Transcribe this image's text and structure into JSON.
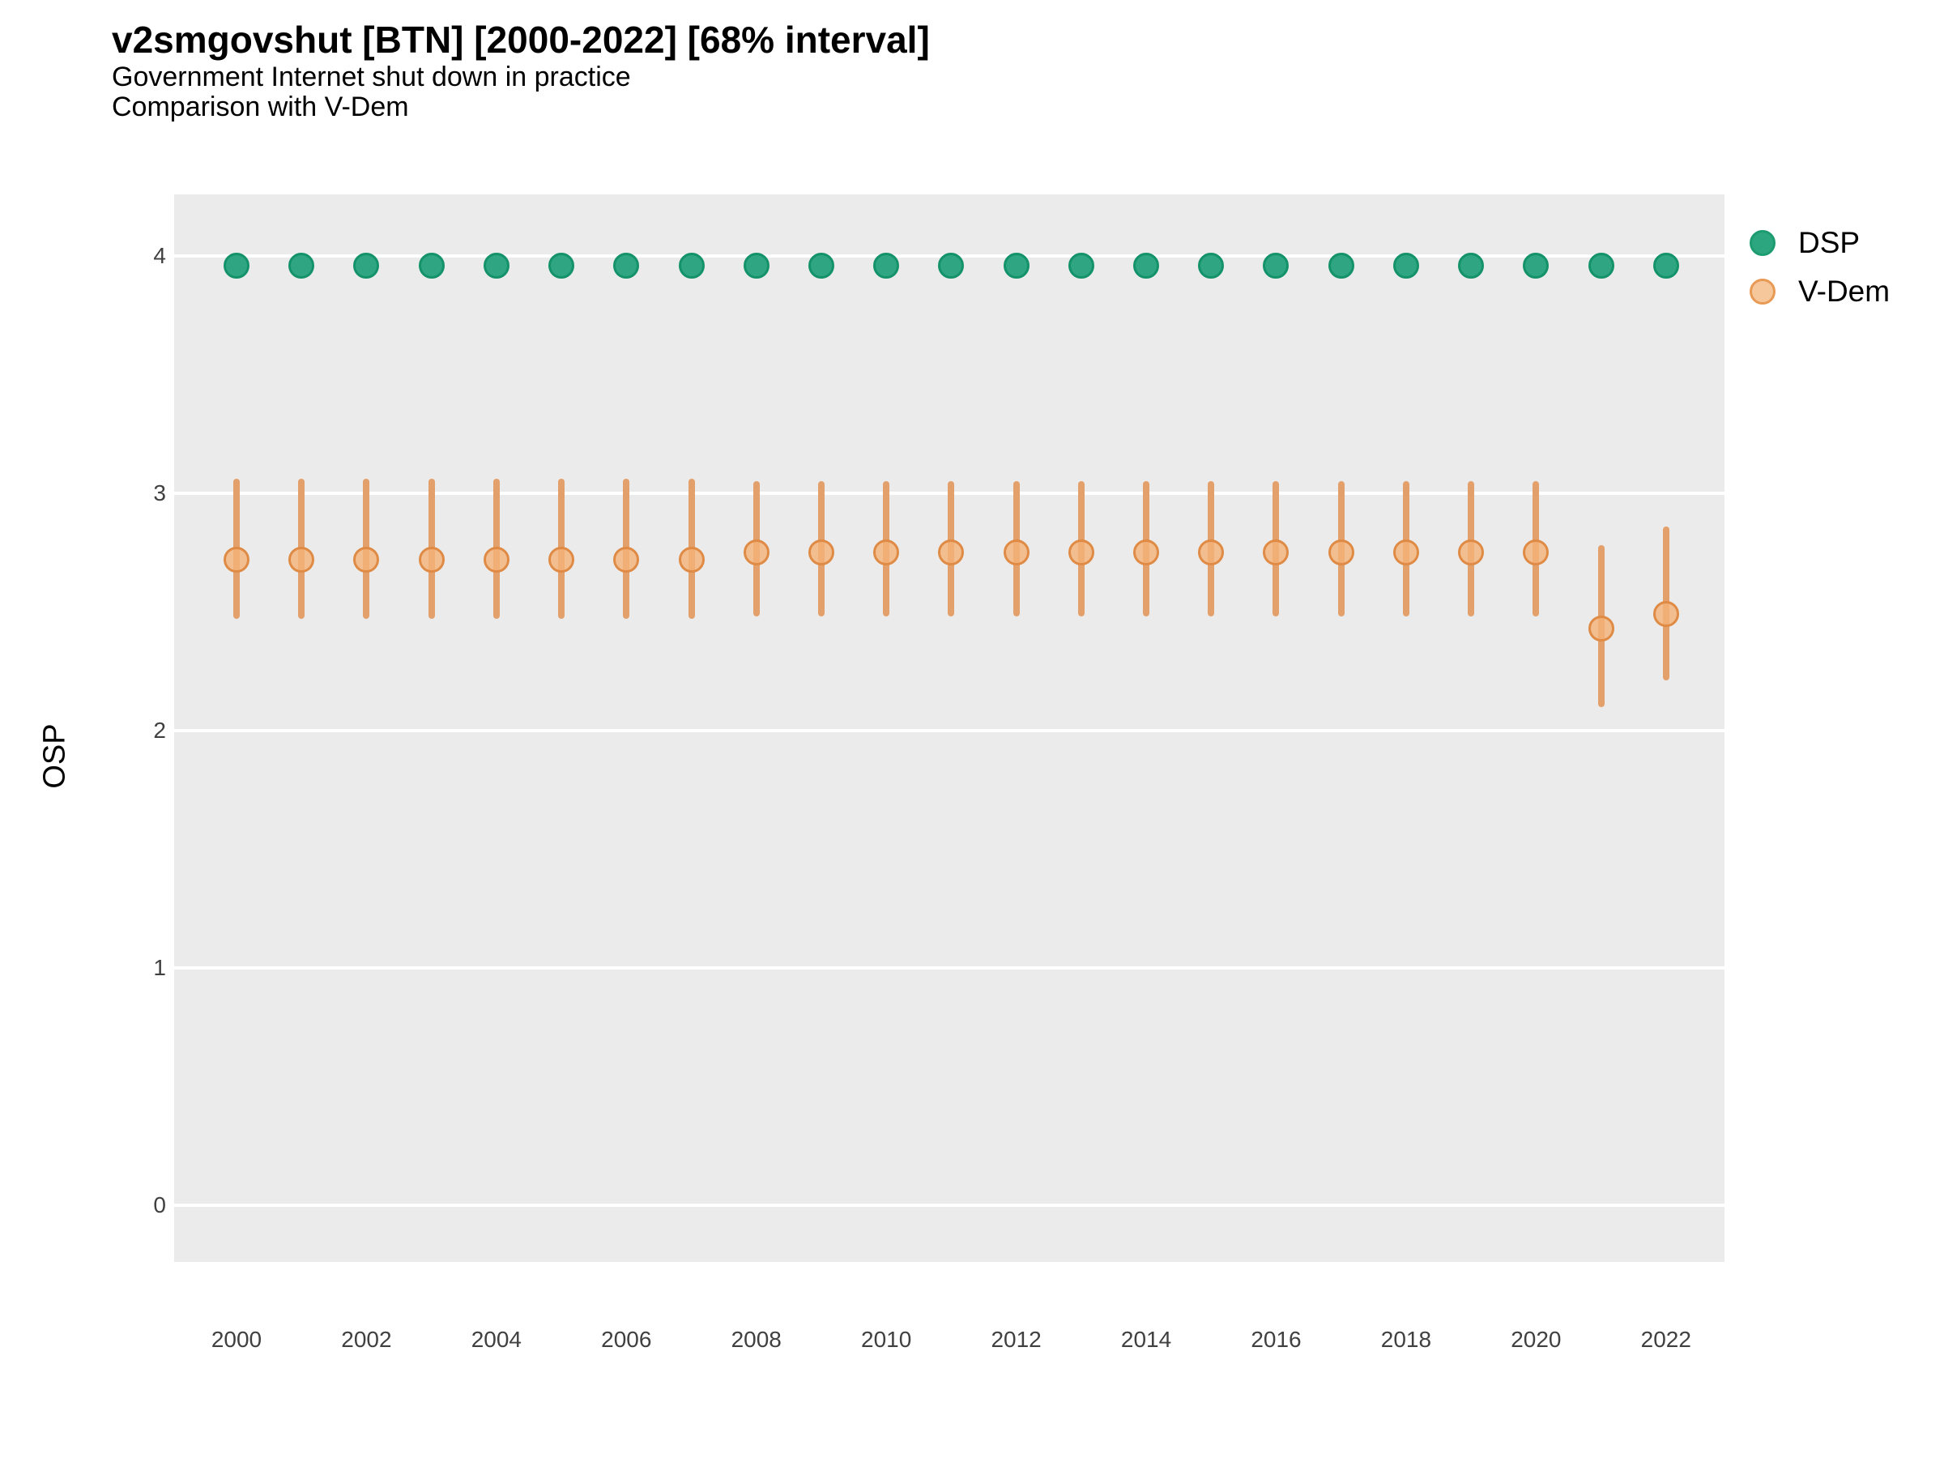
{
  "title": "v2smgovshut [BTN] [2000-2022] [68% interval]",
  "subtitle1": "Government Internet shut down in practice",
  "subtitle2": "Comparison with V-Dem",
  "y_axis_title": "OSP",
  "legend": {
    "items": [
      {
        "label": "DSP",
        "fill": "#2ca67f",
        "stroke": "#1d9c71"
      },
      {
        "label": "V-Dem",
        "fill": "#f5c79b",
        "stroke": "#e89a55"
      }
    ]
  },
  "chart_data": {
    "type": "scatter",
    "title": "v2smgovshut [BTN] [2000-2022] [68% interval]",
    "subtitle": "Government Internet shut down in practice — Comparison with V-Dem",
    "xlabel": "",
    "ylabel": "OSP",
    "x": [
      2000,
      2001,
      2002,
      2003,
      2004,
      2005,
      2006,
      2007,
      2008,
      2009,
      2010,
      2011,
      2012,
      2013,
      2014,
      2015,
      2016,
      2017,
      2018,
      2019,
      2020,
      2021,
      2022
    ],
    "xticks": [
      2000,
      2002,
      2004,
      2006,
      2008,
      2010,
      2012,
      2014,
      2016,
      2018,
      2020,
      2022
    ],
    "yticks": [
      0,
      1,
      2,
      3,
      4
    ],
    "ylim": [
      -0.24,
      4.26
    ],
    "xlim": [
      1999.04,
      2022.9
    ],
    "grid": "major-horizontal-only",
    "legend_position": "right",
    "interval_level": "68%",
    "series": [
      {
        "name": "DSP",
        "color_fill": "#2fa581",
        "color_stroke": "#14926a",
        "color_bar": "#1f9f72",
        "est": [
          3.96,
          3.96,
          3.96,
          3.96,
          3.96,
          3.96,
          3.96,
          3.96,
          3.96,
          3.96,
          3.96,
          3.96,
          3.96,
          3.96,
          3.96,
          3.96,
          3.96,
          3.96,
          3.96,
          3.96,
          3.96,
          3.96,
          3.96
        ],
        "lo": [
          3.91,
          3.91,
          3.91,
          3.91,
          3.91,
          3.91,
          3.91,
          3.91,
          3.91,
          3.91,
          3.91,
          3.91,
          3.91,
          3.91,
          3.91,
          3.91,
          3.91,
          3.91,
          3.91,
          3.91,
          3.91,
          3.91,
          3.91
        ],
        "hi": [
          4.0,
          4.0,
          4.0,
          4.0,
          4.0,
          4.0,
          4.0,
          4.0,
          4.0,
          4.0,
          4.0,
          4.0,
          4.0,
          4.0,
          4.0,
          4.0,
          4.0,
          4.0,
          4.0,
          4.0,
          4.0,
          4.0,
          4.0
        ]
      },
      {
        "name": "V-Dem",
        "color_fill": "rgba(244,178,120,0.8)",
        "color_stroke": "#df8b45",
        "color_bar": "#e3a06b",
        "est": [
          2.72,
          2.72,
          2.72,
          2.72,
          2.72,
          2.72,
          2.72,
          2.72,
          2.75,
          2.75,
          2.75,
          2.75,
          2.75,
          2.75,
          2.75,
          2.75,
          2.75,
          2.75,
          2.75,
          2.75,
          2.75,
          2.43,
          2.49
        ],
        "lo": [
          2.47,
          2.47,
          2.47,
          2.47,
          2.47,
          2.47,
          2.47,
          2.47,
          2.48,
          2.48,
          2.48,
          2.48,
          2.48,
          2.48,
          2.48,
          2.48,
          2.48,
          2.48,
          2.48,
          2.48,
          2.48,
          2.1,
          2.21
        ],
        "hi": [
          3.06,
          3.06,
          3.06,
          3.06,
          3.06,
          3.06,
          3.06,
          3.06,
          3.05,
          3.05,
          3.05,
          3.05,
          3.05,
          3.05,
          3.05,
          3.05,
          3.05,
          3.05,
          3.05,
          3.05,
          3.05,
          2.78,
          2.86
        ]
      }
    ]
  }
}
